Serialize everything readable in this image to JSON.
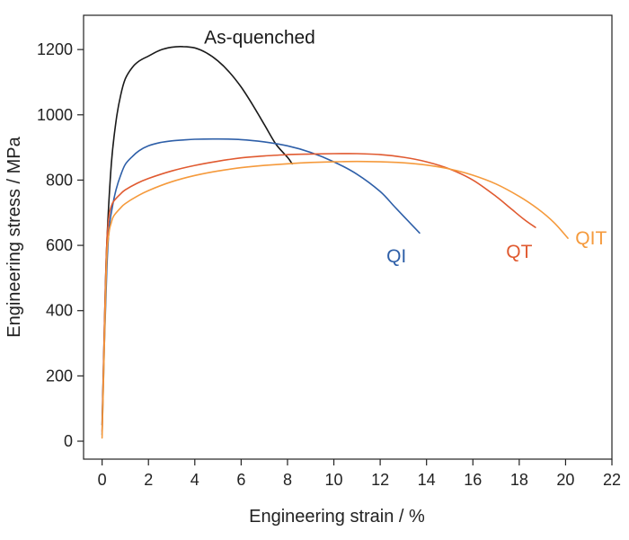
{
  "chart_data": {
    "type": "line",
    "title": "",
    "xlabel": "Engineering strain / %",
    "ylabel": "Engineering stress / MPa",
    "xlim": [
      -0.8,
      22
    ],
    "ylim": [
      -55,
      1305
    ],
    "xticks": [
      0,
      2,
      4,
      6,
      8,
      10,
      12,
      14,
      16,
      18,
      20,
      22
    ],
    "yticks": [
      0,
      200,
      400,
      600,
      800,
      1000,
      1200
    ],
    "grid": false,
    "legend": "none (series labelled directly on the plot)",
    "series": [
      {
        "name": "As-quenched",
        "color": "#1a1a1a",
        "x": [
          0.0,
          0.1,
          0.2,
          0.4,
          0.6,
          0.8,
          1.0,
          1.3,
          1.6,
          2.0,
          2.5,
          3.0,
          3.5,
          4.0,
          4.5,
          5.0,
          5.5,
          6.0,
          6.5,
          7.0,
          7.5,
          8.0,
          8.2
        ],
        "y": [
          50,
          350,
          600,
          850,
          980,
          1060,
          1110,
          1145,
          1165,
          1180,
          1198,
          1207,
          1209,
          1205,
          1190,
          1165,
          1130,
          1085,
          1030,
          970,
          910,
          870,
          850
        ]
      },
      {
        "name": "QI",
        "color": "#2e5fa8",
        "x": [
          0.0,
          0.1,
          0.2,
          0.3,
          0.45,
          0.6,
          0.8,
          1.0,
          1.3,
          1.6,
          2.0,
          2.5,
          3.0,
          3.5,
          4.0,
          5.0,
          6.0,
          7.0,
          8.0,
          9.0,
          10.0,
          11.0,
          12.0,
          12.6,
          13.2,
          13.7
        ],
        "y": [
          20,
          300,
          520,
          650,
          720,
          770,
          815,
          848,
          872,
          890,
          905,
          915,
          920,
          923,
          925,
          926,
          924,
          917,
          905,
          885,
          856,
          818,
          765,
          720,
          675,
          638
        ]
      },
      {
        "name": "QT",
        "color": "#e05a30",
        "x": [
          0.0,
          0.1,
          0.2,
          0.3,
          0.4,
          0.5,
          0.8,
          1.0,
          1.5,
          2.0,
          3.0,
          4.0,
          5.0,
          6.0,
          7.0,
          8.0,
          9.0,
          10.0,
          11.0,
          12.0,
          13.0,
          14.0,
          15.0,
          16.0,
          17.0,
          17.6,
          18.2,
          18.7
        ],
        "y": [
          30,
          350,
          600,
          690,
          720,
          735,
          758,
          770,
          790,
          805,
          828,
          845,
          858,
          868,
          874,
          878,
          880,
          881,
          881,
          878,
          870,
          856,
          834,
          800,
          750,
          715,
          680,
          655
        ]
      },
      {
        "name": "QIT",
        "color": "#f59a3c",
        "x": [
          0.0,
          0.1,
          0.2,
          0.3,
          0.4,
          0.5,
          0.8,
          1.0,
          1.5,
          2.0,
          3.0,
          4.0,
          5.0,
          6.0,
          7.0,
          8.0,
          9.0,
          10.0,
          11.0,
          12.0,
          13.0,
          14.0,
          15.0,
          16.0,
          17.0,
          18.0,
          18.8,
          19.5,
          20.1
        ],
        "y": [
          10,
          300,
          560,
          640,
          670,
          690,
          715,
          728,
          750,
          768,
          795,
          814,
          828,
          838,
          845,
          850,
          854,
          856,
          857,
          856,
          853,
          846,
          834,
          815,
          788,
          750,
          712,
          670,
          622
        ]
      }
    ],
    "labels": [
      {
        "text": "As-quenched",
        "color": "#1a1a1a",
        "x": 6.8,
        "y": 1218
      },
      {
        "text": "QI",
        "color": "#2e5fa8",
        "x": 12.7,
        "y": 548
      },
      {
        "text": "QT",
        "color": "#e05a30",
        "x": 18.0,
        "y": 562
      },
      {
        "text": "QIT",
        "color": "#f59a3c",
        "x": 21.1,
        "y": 603
      }
    ]
  }
}
